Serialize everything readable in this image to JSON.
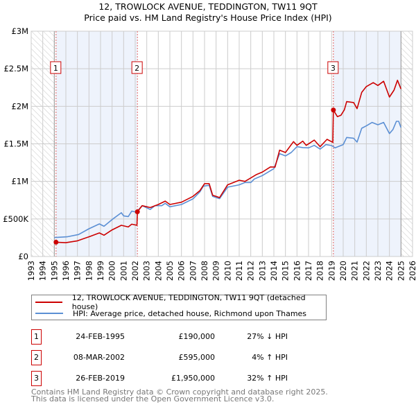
{
  "title_line1": "12, TROWLOCK AVENUE, TEDDINGTON, TW11 9QT",
  "title_line2": "Price paid vs. HM Land Registry's House Price Index (HPI)",
  "chart_data": {
    "type": "line",
    "title": "Price paid vs. HM Land Registry's House Price Index (HPI)",
    "xlim": [
      1993,
      2026
    ],
    "ylim": [
      0,
      3000000
    ],
    "x_ticks": [
      "1993",
      "1994",
      "1995",
      "1996",
      "1997",
      "1998",
      "1999",
      "2000",
      "2001",
      "2002",
      "2003",
      "2004",
      "2005",
      "2006",
      "2007",
      "2008",
      "2009",
      "2010",
      "2011",
      "2012",
      "2013",
      "2014",
      "2015",
      "2016",
      "2017",
      "2018",
      "2019",
      "2020",
      "2021",
      "2022",
      "2023",
      "2024",
      "2025",
      "2026"
    ],
    "y_ticks": [
      {
        "value": 0,
        "label": "£0"
      },
      {
        "value": 500000,
        "label": "£500K"
      },
      {
        "value": 1000000,
        "label": "£1M"
      },
      {
        "value": 1500000,
        "label": "£1.5M"
      },
      {
        "value": 2000000,
        "label": "£2M"
      },
      {
        "value": 2500000,
        "label": "£2.5M"
      },
      {
        "value": 3000000,
        "label": "£3M"
      }
    ],
    "grid": true,
    "colors": {
      "property": "#cc0000",
      "hpi": "#5b8fd4",
      "shade": "#eef3fc",
      "grid": "#cccccc"
    },
    "shaded_ranges": [
      [
        1995.15,
        2002.19
      ],
      [
        2019.15,
        2025.0
      ]
    ],
    "hatched_ranges": [
      [
        1993,
        1995.0
      ],
      [
        2025.0,
        2026
      ]
    ],
    "series": [
      {
        "name": "12, TROWLOCK AVENUE, TEDDINGTON, TW11 9QT (detached house)",
        "color": "#cc0000",
        "points": [
          [
            1995.15,
            190000
          ],
          [
            1996,
            184000
          ],
          [
            1997,
            209000
          ],
          [
            1998,
            262000
          ],
          [
            1998.9,
            314000
          ],
          [
            1999.3,
            283000
          ],
          [
            2000,
            354000
          ],
          [
            2000.8,
            415000
          ],
          [
            2001.4,
            393000
          ],
          [
            2001.7,
            430000
          ],
          [
            2002.15,
            415000
          ],
          [
            2002.19,
            595000
          ],
          [
            2002.6,
            677000
          ],
          [
            2003.3,
            652000
          ],
          [
            2004,
            692000
          ],
          [
            2004.6,
            738000
          ],
          [
            2005,
            692000
          ],
          [
            2006,
            723000
          ],
          [
            2007,
            800000
          ],
          [
            2007.6,
            877000
          ],
          [
            2008,
            970000
          ],
          [
            2008.4,
            970000
          ],
          [
            2008.7,
            816000
          ],
          [
            2009.3,
            785000
          ],
          [
            2010,
            954000
          ],
          [
            2011,
            1015000
          ],
          [
            2011.5,
            1000000
          ],
          [
            2012,
            1046000
          ],
          [
            2012.5,
            1092000
          ],
          [
            2013,
            1123000
          ],
          [
            2013.7,
            1193000
          ],
          [
            2014.1,
            1190000
          ],
          [
            2014.5,
            1416000
          ],
          [
            2015,
            1385000
          ],
          [
            2015.7,
            1530000
          ],
          [
            2016,
            1480000
          ],
          [
            2016.5,
            1536000
          ],
          [
            2016.8,
            1480000
          ],
          [
            2017.5,
            1550000
          ],
          [
            2018,
            1462000
          ],
          [
            2018.6,
            1560000
          ],
          [
            2019.1,
            1520000
          ],
          [
            2019.15,
            1950000
          ],
          [
            2019.5,
            1862000
          ],
          [
            2019.8,
            1880000
          ],
          [
            2020.1,
            1954000
          ],
          [
            2020.3,
            2062000
          ],
          [
            2020.9,
            2050000
          ],
          [
            2021.2,
            1969000
          ],
          [
            2021.6,
            2185000
          ],
          [
            2022,
            2262000
          ],
          [
            2022.6,
            2315000
          ],
          [
            2023,
            2277000
          ],
          [
            2023.5,
            2334000
          ],
          [
            2024,
            2123000
          ],
          [
            2024.4,
            2215000
          ],
          [
            2024.7,
            2346000
          ],
          [
            2025,
            2231000
          ]
        ]
      },
      {
        "name": "HPI: Average price, detached house, Richmond upon Thames",
        "color": "#5b8fd4",
        "points": [
          [
            1995,
            252000
          ],
          [
            1996.1,
            262000
          ],
          [
            1997.1,
            293000
          ],
          [
            1998,
            369000
          ],
          [
            1998.9,
            434000
          ],
          [
            1999.3,
            402000
          ],
          [
            2000,
            492000
          ],
          [
            2000.8,
            582000
          ],
          [
            2001,
            541000
          ],
          [
            2001.4,
            532000
          ],
          [
            2001.7,
            605000
          ],
          [
            2002.1,
            590000
          ],
          [
            2002.6,
            677000
          ],
          [
            2003.3,
            627000
          ],
          [
            2003.7,
            677000
          ],
          [
            2004.3,
            677000
          ],
          [
            2004.6,
            708000
          ],
          [
            2005,
            662000
          ],
          [
            2006,
            692000
          ],
          [
            2007,
            767000
          ],
          [
            2007.6,
            860000
          ],
          [
            2007.9,
            936000
          ],
          [
            2008.4,
            948000
          ],
          [
            2008.7,
            800000
          ],
          [
            2009.3,
            770000
          ],
          [
            2010,
            923000
          ],
          [
            2011,
            954000
          ],
          [
            2011.5,
            985000
          ],
          [
            2012,
            985000
          ],
          [
            2012.3,
            1031000
          ],
          [
            2013,
            1077000
          ],
          [
            2014,
            1170000
          ],
          [
            2014.5,
            1370000
          ],
          [
            2015,
            1339000
          ],
          [
            2015.5,
            1385000
          ],
          [
            2016,
            1462000
          ],
          [
            2016.5,
            1450000
          ],
          [
            2017,
            1446000
          ],
          [
            2017.5,
            1480000
          ],
          [
            2018,
            1430000
          ],
          [
            2018.5,
            1490000
          ],
          [
            2019,
            1477000
          ],
          [
            2019.3,
            1446000
          ],
          [
            2020,
            1490000
          ],
          [
            2020.3,
            1585000
          ],
          [
            2020.9,
            1575000
          ],
          [
            2021.2,
            1523000
          ],
          [
            2021.6,
            1708000
          ],
          [
            2022,
            1739000
          ],
          [
            2022.5,
            1785000
          ],
          [
            2023,
            1754000
          ],
          [
            2023.5,
            1785000
          ],
          [
            2024,
            1637000
          ],
          [
            2024.3,
            1690000
          ],
          [
            2024.6,
            1800000
          ],
          [
            2024.8,
            1800000
          ],
          [
            2025,
            1717000
          ]
        ]
      }
    ],
    "sales": [
      {
        "label": "1",
        "x": 1995.15,
        "y": 190000
      },
      {
        "label": "2",
        "x": 2002.19,
        "y": 595000
      },
      {
        "label": "3",
        "x": 2019.15,
        "y": 1950000
      }
    ],
    "legend_position": "below"
  },
  "legend": {
    "property": "12, TROWLOCK AVENUE, TEDDINGTON, TW11 9QT (detached house)",
    "hpi": "HPI: Average price, detached house, Richmond upon Thames"
  },
  "transactions": [
    {
      "num": "1",
      "date": "24-FEB-1995",
      "price": "£190,000",
      "hpi": "27% ↓ HPI"
    },
    {
      "num": "2",
      "date": "08-MAR-2002",
      "price": "£595,000",
      "hpi": "4% ↑ HPI"
    },
    {
      "num": "3",
      "date": "26-FEB-2019",
      "price": "£1,950,000",
      "hpi": "32% ↑ HPI"
    }
  ],
  "footer_line1": "Contains HM Land Registry data © Crown copyright and database right 2025.",
  "footer_line2": "This data is licensed under the Open Government Licence v3.0."
}
